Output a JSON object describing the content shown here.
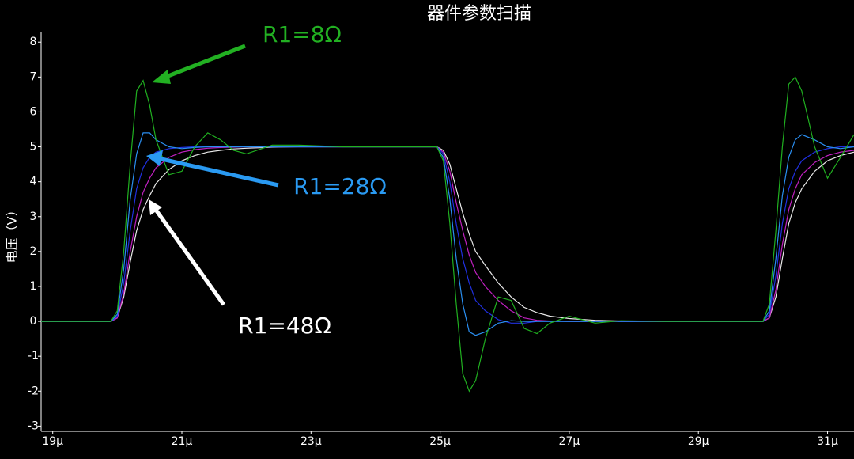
{
  "chart_data": {
    "type": "line",
    "title": "器件参数扫描",
    "y_label": "电压（V）",
    "x": [
      18.82,
      19.5,
      19.9,
      20.0,
      20.1,
      20.2,
      20.3,
      20.4,
      20.5,
      20.6,
      20.8,
      21.0,
      21.2,
      21.4,
      21.6,
      21.8,
      22.0,
      22.4,
      22.8,
      23.5,
      24.5,
      24.95,
      25.05,
      25.15,
      25.25,
      25.35,
      25.45,
      25.55,
      25.7,
      25.9,
      26.1,
      26.3,
      26.5,
      26.7,
      27.0,
      27.4,
      27.8,
      28.5,
      29.5,
      30.0,
      30.1,
      30.2,
      30.3,
      30.4,
      30.5,
      30.6,
      30.8,
      31.0,
      31.2,
      31.41
    ],
    "series": [
      {
        "color": "#e8e8e8",
        "values": [
          0,
          0,
          0,
          0.1,
          0.7,
          1.7,
          2.6,
          3.2,
          3.6,
          3.95,
          4.35,
          4.6,
          4.75,
          4.85,
          4.9,
          4.94,
          4.96,
          4.99,
          5,
          5,
          5,
          5,
          4.9,
          4.5,
          3.8,
          3.1,
          2.5,
          2.0,
          1.6,
          1.1,
          0.7,
          0.4,
          0.25,
          0.15,
          0.08,
          0.03,
          0.01,
          0,
          0,
          0,
          0.1,
          0.7,
          1.8,
          2.8,
          3.4,
          3.8,
          4.3,
          4.6,
          4.75,
          4.85
        ]
      },
      {
        "color": "#c020c0",
        "values": [
          0,
          0,
          0,
          0.1,
          0.8,
          2.0,
          3.0,
          3.7,
          4.1,
          4.4,
          4.7,
          4.85,
          4.92,
          4.96,
          4.98,
          4.99,
          5,
          5,
          5,
          5,
          5,
          5,
          4.85,
          4.3,
          3.4,
          2.6,
          1.9,
          1.4,
          1.0,
          0.6,
          0.3,
          0.1,
          0.03,
          0.01,
          0,
          0,
          0,
          0,
          0,
          0,
          0.1,
          0.9,
          2.2,
          3.2,
          3.8,
          4.2,
          4.55,
          4.75,
          4.85,
          4.9
        ]
      },
      {
        "color": "#2030e0",
        "values": [
          0,
          0,
          0,
          0.15,
          1.1,
          2.6,
          3.8,
          4.4,
          4.7,
          4.85,
          4.95,
          4.98,
          5,
          5,
          5,
          5,
          5,
          5,
          5,
          5,
          5,
          5,
          4.8,
          4.0,
          2.8,
          1.8,
          1.1,
          0.6,
          0.3,
          0.05,
          -0.05,
          -0.05,
          0,
          0,
          0,
          0,
          0,
          0,
          0,
          0,
          0.2,
          1.3,
          2.8,
          3.8,
          4.3,
          4.6,
          4.85,
          4.95,
          5,
          5
        ]
      },
      {
        "color": "#2a8ef0",
        "values": [
          0,
          0,
          0,
          0.2,
          1.5,
          3.5,
          4.8,
          5.4,
          5.4,
          5.2,
          5.0,
          4.95,
          4.98,
          5,
          5,
          5,
          5,
          5,
          5,
          5,
          5,
          5,
          4.7,
          3.5,
          1.8,
          0.5,
          -0.3,
          -0.4,
          -0.3,
          -0.05,
          0.02,
          0,
          0,
          0,
          0,
          0,
          0,
          0,
          0,
          0,
          0.3,
          1.8,
          3.6,
          4.7,
          5.2,
          5.35,
          5.2,
          5.0,
          4.95,
          5.0
        ]
      },
      {
        "color": "#20b020",
        "values": [
          0,
          0,
          0,
          0.3,
          2.0,
          4.5,
          6.6,
          6.9,
          6.2,
          5.2,
          4.2,
          4.3,
          5.0,
          5.4,
          5.2,
          4.9,
          4.8,
          5.05,
          5.05,
          5,
          5,
          5,
          4.6,
          2.8,
          0.5,
          -1.5,
          -2.0,
          -1.7,
          -0.5,
          0.7,
          0.6,
          -0.2,
          -0.35,
          -0.05,
          0.15,
          -0.05,
          0.02,
          0,
          0,
          0,
          0.5,
          2.6,
          5.0,
          6.8,
          7.0,
          6.6,
          5.0,
          4.1,
          4.7,
          5.35
        ]
      }
    ],
    "xlim": [
      18.82,
      31.41
    ],
    "xticks": [
      {
        "value": 19,
        "label": "19μ"
      },
      {
        "value": 21,
        "label": "21μ"
      },
      {
        "value": 23,
        "label": "23μ"
      },
      {
        "value": 25,
        "label": "25μ"
      },
      {
        "value": 27,
        "label": "27μ"
      },
      {
        "value": 29,
        "label": "29μ"
      },
      {
        "value": 31,
        "label": "31μ"
      }
    ],
    "ylim": [
      -3.15,
      8.3
    ],
    "yticks": [
      -3,
      -2,
      -1,
      0,
      1,
      2,
      3,
      4,
      5,
      6,
      7,
      8
    ],
    "annotations": [
      {
        "text": "R1=8Ω",
        "color": "#22b022"
      },
      {
        "text": "R1=28Ω",
        "color": "#2a9af2"
      },
      {
        "text": "R1=48Ω",
        "color": "#ffffff"
      }
    ]
  }
}
